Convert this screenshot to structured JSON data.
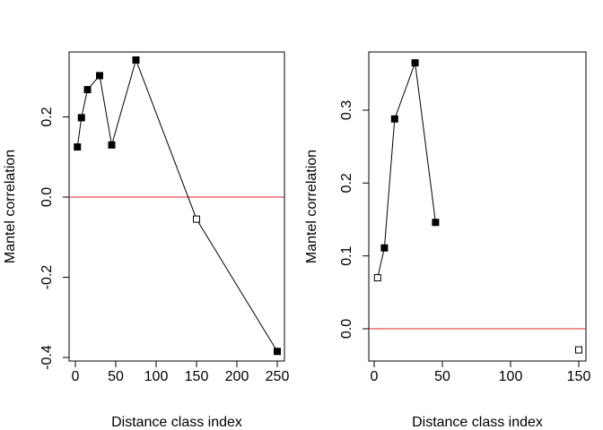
{
  "chart_data": [
    {
      "type": "line",
      "xlabel": "Distance class index",
      "ylabel": "Mantel correlation",
      "xlim": [
        0,
        250
      ],
      "ylim": [
        -0.4,
        0.34
      ],
      "xticks": [
        0,
        50,
        100,
        150,
        200,
        250
      ],
      "yticks": [
        -0.4,
        -0.2,
        0.0,
        0.2
      ],
      "xticklabels": [
        "0",
        "50",
        "100",
        "150",
        "200",
        "250"
      ],
      "yticklabels": [
        "-0.4",
        "-0.2",
        "0.0",
        "0.2"
      ],
      "reference_line": {
        "y": 0,
        "color": "#df2020"
      },
      "grid": false,
      "series": [
        {
          "x": [
            2.5,
            7.5,
            15,
            30,
            45,
            75,
            150,
            250
          ],
          "values": [
            0.125,
            0.198,
            0.268,
            0.303,
            0.13,
            0.342,
            -0.055,
            -0.385
          ],
          "filled": [
            true,
            true,
            true,
            true,
            true,
            true,
            false,
            true
          ]
        }
      ]
    },
    {
      "type": "line",
      "xlabel": "Distance class index",
      "ylabel": "Mantel correlation",
      "xlim": [
        0,
        150
      ],
      "ylim": [
        -0.028,
        0.365
      ],
      "xticks": [
        0,
        50,
        100,
        150
      ],
      "yticks": [
        0.0,
        0.1,
        0.2,
        0.3
      ],
      "xticklabels": [
        "0",
        "50",
        "100",
        "150"
      ],
      "yticklabels": [
        "0.0",
        "0.1",
        "0.2",
        "0.3"
      ],
      "reference_line": {
        "y": 0,
        "color": "#df2020"
      },
      "grid": false,
      "series": [
        {
          "x": [
            2.5,
            7.5,
            15,
            30,
            45
          ],
          "values": [
            0.07,
            0.111,
            0.288,
            0.365,
            0.146
          ],
          "filled": [
            false,
            true,
            true,
            true,
            true
          ]
        },
        {
          "x": [
            150
          ],
          "values": [
            -0.029
          ],
          "filled": [
            false
          ]
        }
      ]
    }
  ]
}
